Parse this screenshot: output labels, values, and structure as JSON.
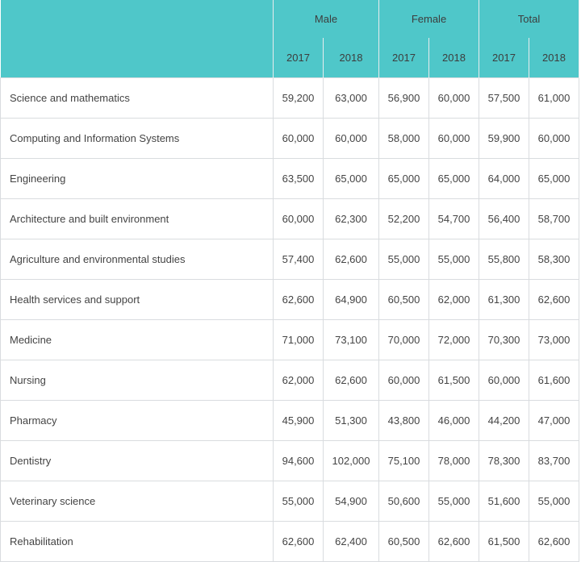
{
  "header": {
    "groups": [
      "Male",
      "Female",
      "Total"
    ],
    "years": [
      "2017",
      "2018",
      "2017",
      "2018",
      "2017",
      "2018"
    ]
  },
  "rows": [
    {
      "field": "Science and mathematics",
      "values": [
        "59,200",
        "63,000",
        "56,900",
        "60,000",
        "57,500",
        "61,000"
      ]
    },
    {
      "field": "Computing and Information Systems",
      "values": [
        "60,000",
        "60,000",
        "58,000",
        "60,000",
        "59,900",
        "60,000"
      ]
    },
    {
      "field": "Engineering",
      "values": [
        "63,500",
        "65,000",
        "65,000",
        "65,000",
        "64,000",
        "65,000"
      ]
    },
    {
      "field": "Architecture and built environment",
      "values": [
        "60,000",
        "62,300",
        "52,200",
        "54,700",
        "56,400",
        "58,700"
      ]
    },
    {
      "field": "Agriculture and environmental studies",
      "values": [
        "57,400",
        "62,600",
        "55,000",
        "55,000",
        "55,800",
        "58,300"
      ]
    },
    {
      "field": "Health services and support",
      "values": [
        "62,600",
        "64,900",
        "60,500",
        "62,000",
        "61,300",
        "62,600"
      ]
    },
    {
      "field": "Medicine",
      "values": [
        "71,000",
        "73,100",
        "70,000",
        "72,000",
        "70,300",
        "73,000"
      ]
    },
    {
      "field": "Nursing",
      "values": [
        "62,000",
        "62,600",
        "60,000",
        "61,500",
        "60,000",
        "61,600"
      ]
    },
    {
      "field": "Pharmacy",
      "values": [
        "45,900",
        "51,300",
        "43,800",
        "46,000",
        "44,200",
        "47,000"
      ]
    },
    {
      "field": "Dentistry",
      "values": [
        "94,600",
        "102,000",
        "75,100",
        "78,000",
        "78,300",
        "83,700"
      ]
    },
    {
      "field": "Veterinary science",
      "values": [
        "55,000",
        "54,900",
        "50,600",
        "55,000",
        "51,600",
        "55,000"
      ]
    },
    {
      "field": "Rehabilitation",
      "values": [
        "62,600",
        "62,400",
        "60,500",
        "62,600",
        "61,500",
        "62,600"
      ]
    }
  ],
  "colors": {
    "header_background": "#4fc7c9",
    "border": "#d9dcdf"
  }
}
